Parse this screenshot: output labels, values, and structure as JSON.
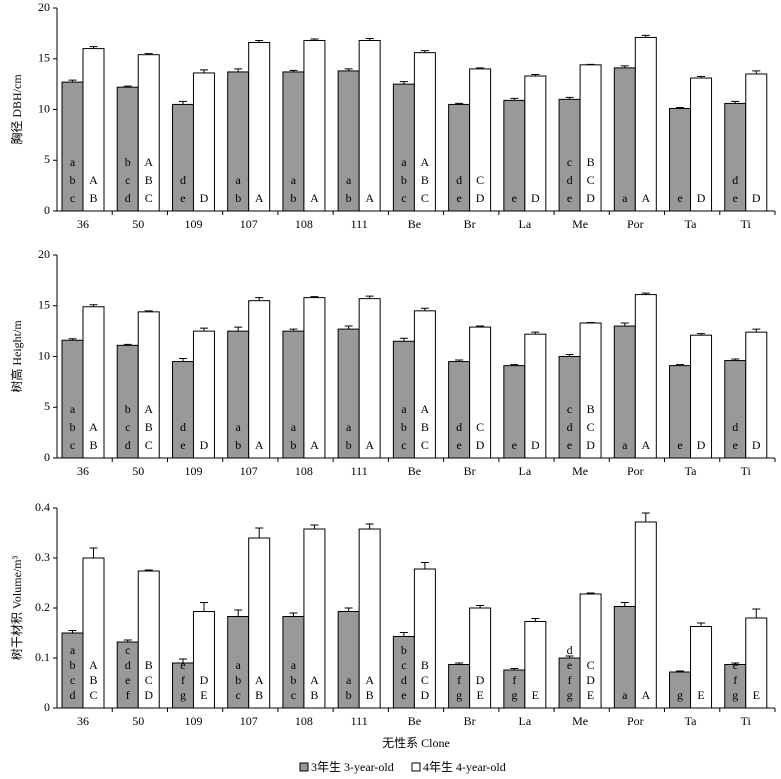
{
  "chart_data": [
    {
      "type": "bar",
      "ylabel": "胸径 DBH/cm",
      "categories": [
        "36",
        "50",
        "109",
        "107",
        "108",
        "111",
        "Be",
        "Br",
        "La",
        "Me",
        "Por",
        "Ta",
        "Ti"
      ],
      "ylim": [
        0,
        20
      ],
      "yticks": [
        0,
        5,
        10,
        15,
        20
      ],
      "series": [
        {
          "name": "3年生 3-year-old",
          "color": "#999999",
          "values": [
            12.7,
            12.2,
            10.5,
            13.7,
            13.7,
            13.8,
            12.5,
            10.5,
            10.9,
            11.0,
            14.1,
            10.1,
            10.6
          ],
          "errors": [
            0.2,
            0.1,
            0.3,
            0.3,
            0.15,
            0.2,
            0.25,
            0.1,
            0.2,
            0.2,
            0.2,
            0.1,
            0.2
          ],
          "letters": [
            [
              "a",
              "b",
              "c"
            ],
            [
              "b",
              "c",
              "d"
            ],
            [
              "d",
              "e"
            ],
            [
              "a",
              "b"
            ],
            [
              "a",
              "b"
            ],
            [
              "a",
              "b"
            ],
            [
              "a",
              "b",
              "c"
            ],
            [
              "d",
              "e"
            ],
            [
              "e"
            ],
            [
              "c",
              "d",
              "e"
            ],
            [
              "a"
            ],
            [
              "e"
            ],
            [
              "d",
              "e"
            ]
          ]
        },
        {
          "name": "4年生 4-year-old",
          "color": "#ffffff",
          "values": [
            16.0,
            15.4,
            13.6,
            16.6,
            16.8,
            16.8,
            15.6,
            14.0,
            13.3,
            14.4,
            17.1,
            13.1,
            13.5
          ],
          "errors": [
            0.2,
            0.1,
            0.3,
            0.2,
            0.15,
            0.2,
            0.2,
            0.1,
            0.15,
            0.05,
            0.2,
            0.15,
            0.3
          ],
          "letters": [
            [
              "A",
              "B"
            ],
            [
              "A",
              "B",
              "C"
            ],
            [
              "D"
            ],
            [
              "A"
            ],
            [
              "A"
            ],
            [
              "A"
            ],
            [
              "A",
              "B",
              "C"
            ],
            [
              "C",
              "D"
            ],
            [
              "D"
            ],
            [
              "B",
              "C",
              "D"
            ],
            [
              "A"
            ],
            [
              "D"
            ],
            [
              "D"
            ]
          ]
        }
      ]
    },
    {
      "type": "bar",
      "ylabel": "树高 Height/m",
      "categories": [
        "36",
        "50",
        "109",
        "107",
        "108",
        "111",
        "Be",
        "Br",
        "La",
        "Me",
        "Por",
        "Ta",
        "Ti"
      ],
      "ylim": [
        0,
        20
      ],
      "yticks": [
        0,
        5,
        10,
        15,
        20
      ],
      "series": [
        {
          "name": "3年生 3-year-old",
          "color": "#999999",
          "values": [
            11.6,
            11.1,
            9.5,
            12.5,
            12.5,
            12.7,
            11.5,
            9.5,
            9.1,
            10.0,
            13.0,
            9.1,
            9.6
          ],
          "errors": [
            0.15,
            0.1,
            0.3,
            0.4,
            0.2,
            0.3,
            0.3,
            0.15,
            0.1,
            0.2,
            0.3,
            0.1,
            0.15
          ],
          "letters": [
            [
              "a",
              "b",
              "c"
            ],
            [
              "b",
              "c",
              "d"
            ],
            [
              "d",
              "e"
            ],
            [
              "a",
              "b"
            ],
            [
              "a",
              "b"
            ],
            [
              "a",
              "b"
            ],
            [
              "a",
              "b",
              "c"
            ],
            [
              "d",
              "e"
            ],
            [
              "e"
            ],
            [
              "c",
              "d",
              "e"
            ],
            [
              "a"
            ],
            [
              "e"
            ],
            [
              "d",
              "e"
            ]
          ]
        },
        {
          "name": "4年生 4-year-old",
          "color": "#ffffff",
          "values": [
            14.9,
            14.4,
            12.5,
            15.5,
            15.8,
            15.7,
            14.5,
            12.9,
            12.2,
            13.3,
            16.1,
            12.1,
            12.4
          ],
          "errors": [
            0.2,
            0.1,
            0.3,
            0.3,
            0.1,
            0.25,
            0.25,
            0.1,
            0.2,
            0.05,
            0.15,
            0.15,
            0.3
          ],
          "letters": [
            [
              "A",
              "B"
            ],
            [
              "A",
              "B",
              "C"
            ],
            [
              "D"
            ],
            [
              "A"
            ],
            [
              "A"
            ],
            [
              "A"
            ],
            [
              "A",
              "B",
              "C"
            ],
            [
              "C",
              "D"
            ],
            [
              "D"
            ],
            [
              "B",
              "C",
              "D"
            ],
            [
              "A"
            ],
            [
              "D"
            ],
            [
              "D"
            ]
          ]
        }
      ]
    },
    {
      "type": "bar",
      "ylabel": "树干材积 Volume/m³",
      "xlabel": "无性系 Clone",
      "categories": [
        "36",
        "50",
        "109",
        "107",
        "108",
        "111",
        "Be",
        "Br",
        "La",
        "Me",
        "Por",
        "Ta",
        "Ti"
      ],
      "ylim": [
        0,
        0.4
      ],
      "yticks": [
        0,
        0.1,
        0.2,
        0.3,
        0.4
      ],
      "series": [
        {
          "name": "3年生 3-year-old",
          "color": "#999999",
          "values": [
            0.15,
            0.132,
            0.09,
            0.183,
            0.183,
            0.193,
            0.143,
            0.087,
            0.076,
            0.1,
            0.203,
            0.072,
            0.087
          ],
          "errors": [
            0.005,
            0.004,
            0.008,
            0.013,
            0.007,
            0.007,
            0.008,
            0.003,
            0.003,
            0.004,
            0.008,
            0.002,
            0.003
          ],
          "letters": [
            [
              "a",
              "b",
              "c",
              "d"
            ],
            [
              "c",
              "d",
              "e",
              "f"
            ],
            [
              "e",
              "f",
              "g"
            ],
            [
              "a",
              "b",
              "c"
            ],
            [
              "a",
              "b",
              "c"
            ],
            [
              "a",
              "b"
            ],
            [
              "b",
              "c",
              "d",
              "e"
            ],
            [
              "f",
              "g"
            ],
            [
              "f",
              "g"
            ],
            [
              "d",
              "e",
              "f",
              "g"
            ],
            [
              "a"
            ],
            [
              "g"
            ],
            [
              "e",
              "f",
              "g"
            ]
          ]
        },
        {
          "name": "4年生 4-year-old",
          "color": "#ffffff",
          "values": [
            0.3,
            0.274,
            0.193,
            0.34,
            0.358,
            0.358,
            0.278,
            0.2,
            0.173,
            0.228,
            0.372,
            0.163,
            0.18
          ],
          "errors": [
            0.02,
            0.002,
            0.018,
            0.02,
            0.008,
            0.01,
            0.013,
            0.005,
            0.006,
            0.002,
            0.018,
            0.007,
            0.018
          ],
          "letters": [
            [
              "A",
              "B",
              "C"
            ],
            [
              "B",
              "C",
              "D"
            ],
            [
              "D",
              "E"
            ],
            [
              "A",
              "B"
            ],
            [
              "A",
              "B"
            ],
            [
              "A",
              "B"
            ],
            [
              "B",
              "C",
              "D"
            ],
            [
              "D",
              "E"
            ],
            [
              "E"
            ],
            [
              "C",
              "D",
              "E"
            ],
            [
              "A"
            ],
            [
              "E"
            ],
            [
              "E"
            ]
          ]
        }
      ]
    }
  ]
}
